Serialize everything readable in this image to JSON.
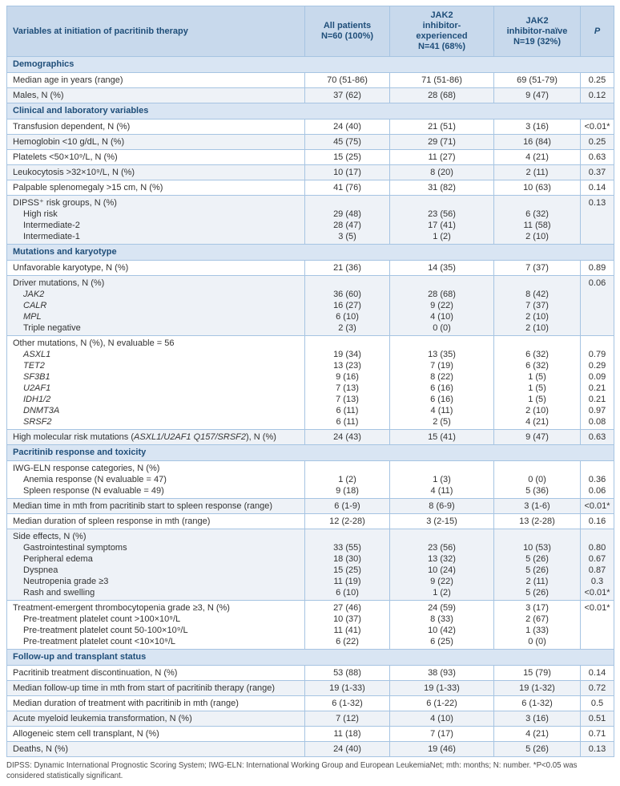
{
  "colors": {
    "header_bg": "#c8d9ec",
    "section_bg": "#d9e5f3",
    "border": "#a6c4e2",
    "heading_text": "#1f4e79",
    "row_stripe": "#eef2f7"
  },
  "table": {
    "header": {
      "variables": "Variables at initiation of pacritinib therapy",
      "all_patients": "All patients\nN=60 (100%)",
      "jak2_experienced": "JAK2\ninhibitor-\nexperienced\nN=41 (68%)",
      "jak2_naive": "JAK2\ninhibitor-naïve\nN=19 (32%)",
      "p": "P"
    },
    "sections": [
      {
        "title": "Demographics",
        "rows": [
          {
            "lines": [
              {
                "label": "Median age in years (range)",
                "v": [
                  "70 (51-86)",
                  "71 (51-86)",
                  "69 (51-79)"
                ],
                "p": "0.25"
              }
            ]
          },
          {
            "lines": [
              {
                "label": "Males, N (%)",
                "v": [
                  "37 (62)",
                  "28 (68)",
                  "9 (47)"
                ],
                "p": "0.12"
              }
            ]
          }
        ]
      },
      {
        "title": "Clinical and laboratory variables",
        "rows": [
          {
            "lines": [
              {
                "label": "Transfusion dependent, N (%)",
                "v": [
                  "24 (40)",
                  "21 (51)",
                  "3 (16)"
                ],
                "p": "<0.01*"
              }
            ]
          },
          {
            "lines": [
              {
                "label": "Hemoglobin <10 g/dL, N (%)",
                "v": [
                  "45 (75)",
                  "29 (71)",
                  "16 (84)"
                ],
                "p": "0.25"
              }
            ]
          },
          {
            "lines": [
              {
                "label": "Platelets <50×10⁹/L, N (%)",
                "v": [
                  "15 (25)",
                  "11 (27)",
                  "4 (21)"
                ],
                "p": "0.63"
              }
            ]
          },
          {
            "lines": [
              {
                "label": "Leukocytosis >32×10⁹/L, N (%)",
                "v": [
                  "10 (17)",
                  "8 (20)",
                  "2 (11)"
                ],
                "p": "0.37"
              }
            ]
          },
          {
            "lines": [
              {
                "label": "Palpable splenomegaly >15 cm, N (%)",
                "v": [
                  "41 (76)",
                  "31 (82)",
                  "10 (63)"
                ],
                "p": "0.14"
              }
            ]
          },
          {
            "lines": [
              {
                "label": "DIPSS⁺ risk groups, N (%)",
                "v": [
                  "",
                  "",
                  ""
                ],
                "p": "0.13"
              },
              {
                "label": "High risk",
                "ind": 1,
                "v": [
                  "29 (48)",
                  "23 (56)",
                  "6 (32)"
                ],
                "p": ""
              },
              {
                "label": "Intermediate-2",
                "ind": 1,
                "v": [
                  "28 (47)",
                  "17 (41)",
                  "11 (58)"
                ],
                "p": ""
              },
              {
                "label": "Intermediate-1",
                "ind": 1,
                "v": [
                  "3 (5)",
                  "1 (2)",
                  "2 (10)"
                ],
                "p": ""
              }
            ]
          }
        ]
      },
      {
        "title": "Mutations and karyotype",
        "rows": [
          {
            "lines": [
              {
                "label": "Unfavorable karyotype, N (%)",
                "v": [
                  "21 (36)",
                  "14 (35)",
                  "7 (37)"
                ],
                "p": "0.89"
              }
            ]
          },
          {
            "lines": [
              {
                "label": "Driver mutations, N (%)",
                "v": [
                  "",
                  "",
                  ""
                ],
                "p": "0.06"
              },
              {
                "label": "*JAK2*",
                "ind": 1,
                "v": [
                  "36 (60)",
                  "28 (68)",
                  "8 (42)"
                ],
                "p": ""
              },
              {
                "label": "*CALR*",
                "ind": 1,
                "v": [
                  "16 (27)",
                  "9 (22)",
                  "7 (37)"
                ],
                "p": ""
              },
              {
                "label": "*MPL*",
                "ind": 1,
                "v": [
                  "6 (10)",
                  "4 (10)",
                  "2 (10)"
                ],
                "p": ""
              },
              {
                "label": "Triple negative",
                "ind": 1,
                "v": [
                  "2 (3)",
                  "0 (0)",
                  "2 (10)"
                ],
                "p": ""
              }
            ]
          },
          {
            "lines": [
              {
                "label": "Other mutations, N (%), N evaluable = 56",
                "v": [
                  "",
                  "",
                  ""
                ],
                "p": ""
              },
              {
                "label": "*ASXL1*",
                "ind": 1,
                "v": [
                  "19 (34)",
                  "13 (35)",
                  "6 (32)"
                ],
                "p": "0.79"
              },
              {
                "label": "*TET2*",
                "ind": 1,
                "v": [
                  "13 (23)",
                  "7 (19)",
                  "6 (32)"
                ],
                "p": "0.29"
              },
              {
                "label": "*SF3B1*",
                "ind": 1,
                "v": [
                  "9 (16)",
                  "8 (22)",
                  "1 (5)"
                ],
                "p": "0.09"
              },
              {
                "label": "*U2AF1*",
                "ind": 1,
                "v": [
                  "7 (13)",
                  "6 (16)",
                  "1 (5)"
                ],
                "p": "0.21"
              },
              {
                "label": "*IDH1/2*",
                "ind": 1,
                "v": [
                  "7 (13)",
                  "6 (16)",
                  "1 (5)"
                ],
                "p": "0.21"
              },
              {
                "label": "*DNMT3A*",
                "ind": 1,
                "v": [
                  "6 (11)",
                  "4 (11)",
                  "2 (10)"
                ],
                "p": "0.97"
              },
              {
                "label": "*SRSF2*",
                "ind": 1,
                "v": [
                  "6 (11)",
                  "2 (5)",
                  "4 (21)"
                ],
                "p": "0.08"
              }
            ]
          },
          {
            "lines": [
              {
                "label": "High molecular risk mutations (*ASXL1/U2AF1 Q157/SRSF2*), N (%)",
                "v": [
                  "24 (43)",
                  "15 (41)",
                  "9 (47)"
                ],
                "p": "0.63"
              }
            ]
          }
        ]
      },
      {
        "title": "Pacritinib response and toxicity",
        "rows": [
          {
            "lines": [
              {
                "label": "IWG-ELN response categories, N (%)",
                "v": [
                  "",
                  "",
                  ""
                ],
                "p": ""
              },
              {
                "label": "Anemia response (N evaluable = 47)",
                "ind": 1,
                "v": [
                  "1 (2)",
                  "1 (3)",
                  "0 (0)"
                ],
                "p": "0.36"
              },
              {
                "label": "Spleen response (N evaluable = 49)",
                "ind": 1,
                "v": [
                  "9 (18)",
                  "4 (11)",
                  "5 (36)"
                ],
                "p": "0.06"
              }
            ]
          },
          {
            "lines": [
              {
                "label": "Median time in mth from pacritinib start to spleen response (range)",
                "v": [
                  "6 (1-9)",
                  "8 (6-9)",
                  "3 (1-6)"
                ],
                "p": "<0.01*"
              }
            ]
          },
          {
            "lines": [
              {
                "label": "Median duration of spleen response in mth (range)",
                "v": [
                  "12 (2-28)",
                  "3 (2-15)",
                  "13 (2-28)"
                ],
                "p": "0.16"
              }
            ]
          },
          {
            "lines": [
              {
                "label": "Side effects, N (%)",
                "v": [
                  "",
                  "",
                  ""
                ],
                "p": ""
              },
              {
                "label": "Gastrointestinal symptoms",
                "ind": 1,
                "v": [
                  "33 (55)",
                  "23 (56)",
                  "10 (53)"
                ],
                "p": "0.80"
              },
              {
                "label": "Peripheral edema",
                "ind": 1,
                "v": [
                  "18 (30)",
                  "13 (32)",
                  "5 (26)"
                ],
                "p": "0.67"
              },
              {
                "label": "Dyspnea",
                "ind": 1,
                "v": [
                  "15 (25)",
                  "10 (24)",
                  "5 (26)"
                ],
                "p": "0.87"
              },
              {
                "label": "Neutropenia grade ≥3",
                "ind": 1,
                "v": [
                  "11 (19)",
                  "9 (22)",
                  "2 (11)"
                ],
                "p": "0.3"
              },
              {
                "label": "Rash and swelling",
                "ind": 1,
                "v": [
                  "6 (10)",
                  "1 (2)",
                  "5 (26)"
                ],
                "p": "<0.01*"
              }
            ]
          },
          {
            "lines": [
              {
                "label": "Treatment-emergent thrombocytopenia grade ≥3, N (%)",
                "v": [
                  "27 (46)",
                  "24 (59)",
                  "3 (17)"
                ],
                "p": "<0.01*"
              },
              {
                "label": "Pre-treatment platelet count >100×10⁹/L",
                "ind": 1,
                "v": [
                  "10 (37)",
                  "8 (33)",
                  "2 (67)"
                ],
                "p": ""
              },
              {
                "label": "Pre-treatment platelet count 50-100×10⁹/L",
                "ind": 1,
                "v": [
                  "11 (41)",
                  "10 (42)",
                  "1 (33)"
                ],
                "p": ""
              },
              {
                "label": "Pre-treatment platelet count <10×10⁹/L",
                "ind": 1,
                "v": [
                  "6 (22)",
                  "6 (25)",
                  "0 (0)"
                ],
                "p": ""
              }
            ]
          }
        ]
      },
      {
        "title": "Follow-up and transplant status",
        "rows": [
          {
            "lines": [
              {
                "label": "Pacritinib treatment discontinuation, N (%)",
                "v": [
                  "53 (88)",
                  "38 (93)",
                  "15 (79)"
                ],
                "p": "0.14"
              }
            ]
          },
          {
            "lines": [
              {
                "label": "Median follow-up time in mth from start of pacritinib therapy (range)",
                "v": [
                  "19 (1-33)",
                  "19 (1-33)",
                  "19 (1-32)"
                ],
                "p": "0.72"
              }
            ]
          },
          {
            "lines": [
              {
                "label": "Median duration of treatment with pacritinib in mth (range)",
                "v": [
                  "6 (1-32)",
                  "6 (1-22)",
                  "6 (1-32)"
                ],
                "p": "0.5"
              }
            ]
          },
          {
            "lines": [
              {
                "label": "Acute myeloid leukemia transformation, N (%)",
                "v": [
                  "7 (12)",
                  "4 (10)",
                  "3 (16)"
                ],
                "p": "0.51"
              }
            ]
          },
          {
            "lines": [
              {
                "label": "Allogeneic stem cell transplant, N (%)",
                "v": [
                  "11 (18)",
                  "7 (17)",
                  "4 (21)"
                ],
                "p": "0.71"
              }
            ]
          },
          {
            "lines": [
              {
                "label": "Deaths, N (%)",
                "v": [
                  "24 (40)",
                  "19 (46)",
                  "5 (26)"
                ],
                "p": "0.13"
              }
            ]
          }
        ]
      }
    ],
    "footnote": "DIPSS: Dynamic International Prognostic Scoring System; IWG-ELN: International Working Group and European LeukemiaNet; mth: months; N: number. *P<0.05 was considered statistically significant."
  }
}
